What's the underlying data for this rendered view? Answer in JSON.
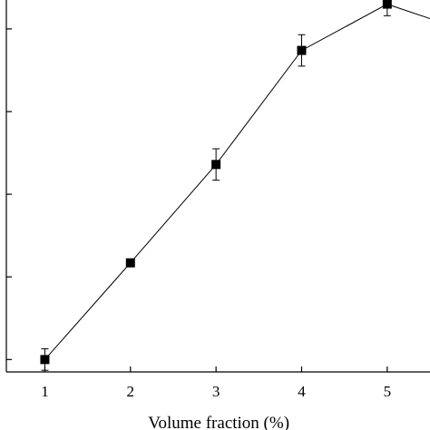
{
  "chart_data": {
    "type": "line",
    "title": "",
    "xlabel": "Volume fraction (%)",
    "ylabel": "",
    "xlim": [
      0.55,
      5.5
    ],
    "ylim": [
      0.85,
      5.35
    ],
    "x_ticks": [
      "1",
      "2",
      "3",
      "4",
      "5"
    ],
    "y_tick_values": [
      1,
      2,
      3,
      4,
      5
    ],
    "grid": false,
    "legend": "none",
    "series": [
      {
        "x": [
          1,
          2,
          3,
          4,
          5,
          6
        ],
        "y": [
          1.0,
          2.17,
          3.36,
          4.74,
          5.3,
          4.95
        ],
        "yerr": [
          0.13,
          0.0,
          0.19,
          0.19,
          0.14,
          0.0
        ],
        "marker": "square",
        "color": "#000000"
      }
    ]
  }
}
